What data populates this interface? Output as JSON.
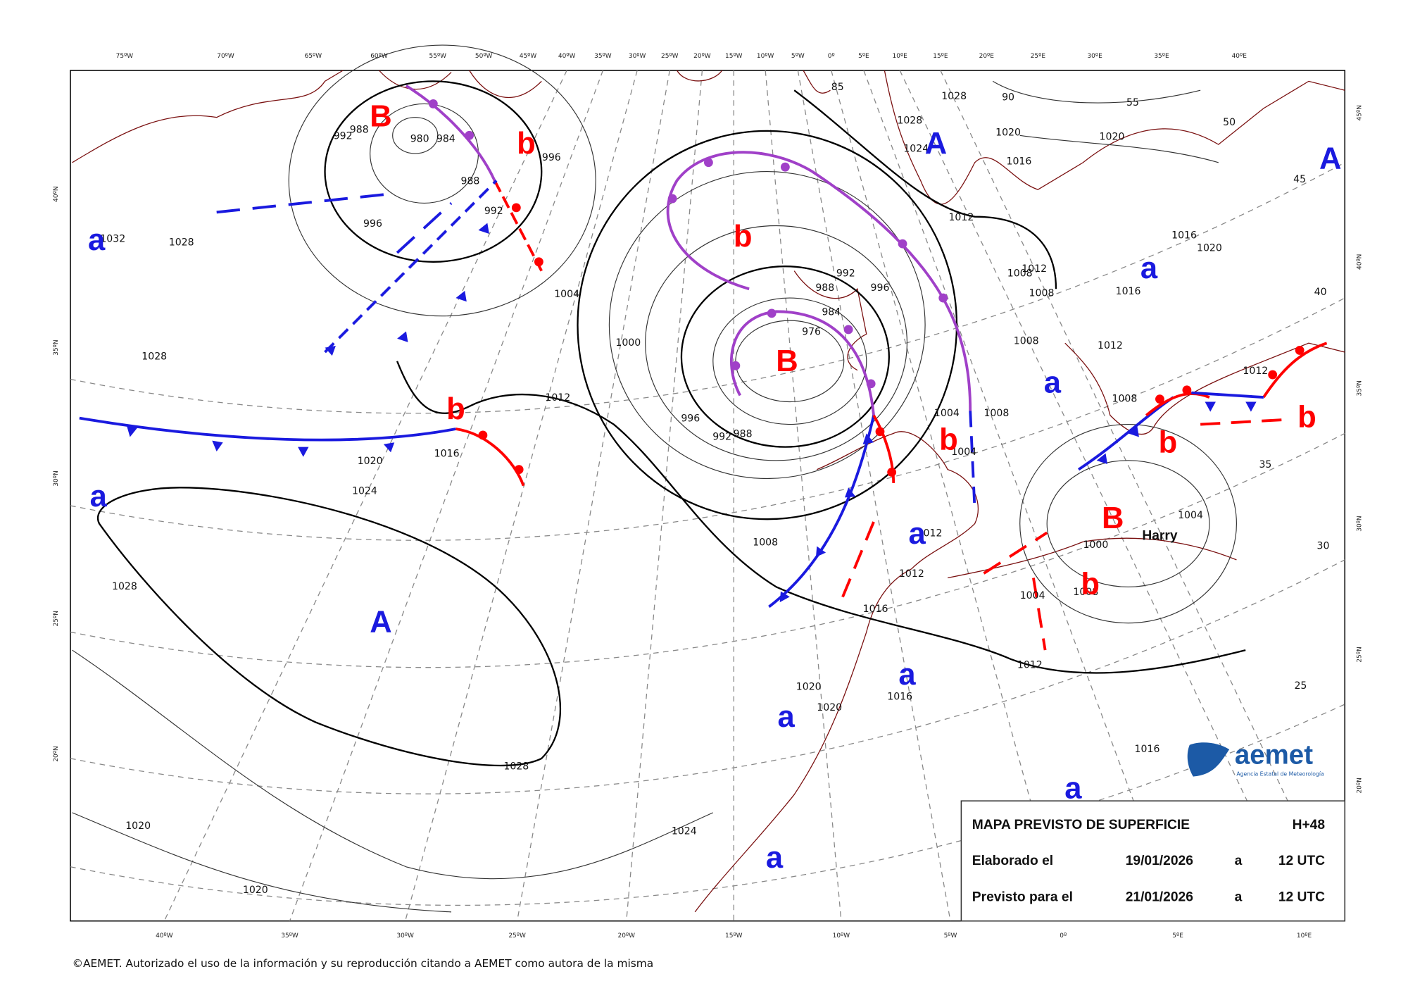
{
  "map": {
    "top_axis": [
      "75ºW",
      "70ºW",
      "65ºW",
      "60ºW",
      "55ºW",
      "50ºW",
      "45ºW",
      "40ºW",
      "35ºW",
      "30ºW",
      "25ºW",
      "20ºW",
      "15ºW",
      "10ºW",
      "5ºW",
      "0º",
      "5ºE",
      "10ºE",
      "15ºE",
      "20ºE",
      "25ºE",
      "30ºE",
      "35ºE",
      "40ºE"
    ],
    "bottom_axis": [
      "40ºW",
      "35ºW",
      "30ºW",
      "25ºW",
      "20ºW",
      "15ºW",
      "10ºW",
      "5ºW",
      "0º",
      "5ºE",
      "10ºE"
    ],
    "left_axis": [
      "40ºN",
      "35ºN",
      "30ºN",
      "25ºN",
      "20ºN"
    ],
    "right_axis": [
      "45ºN",
      "40ºN",
      "35ºN",
      "30ºN",
      "25ºN",
      "20ºN"
    ],
    "isobar_labels": [
      "980",
      "984",
      "988",
      "992",
      "996",
      "988",
      "992",
      "996",
      "1032",
      "1028",
      "1028",
      "1004",
      "1000",
      "1012",
      "1016",
      "1020",
      "1024",
      "1028",
      "1028",
      "1020",
      "1020",
      "1024",
      "996",
      "992",
      "988",
      "1008",
      "976",
      "988",
      "992",
      "996",
      "984",
      "1004",
      "1004",
      "1008",
      "1012",
      "1012",
      "1016",
      "1020",
      "1020",
      "1016",
      "1012",
      "1004",
      "1000",
      "1004",
      "1008",
      "1028",
      "1028",
      "1020",
      "1016",
      "1020",
      "1012",
      "1012",
      "1008",
      "1008",
      "1008",
      "1012",
      "1008",
      "1012",
      "1016",
      "1020",
      "1016",
      "1016",
      "85",
      "90",
      "55",
      "50",
      "45",
      "40",
      "35",
      "30",
      "25",
      "1024"
    ],
    "pressure_centers": [
      "B",
      "b",
      "A",
      "A",
      "a",
      "b",
      "a",
      "B",
      "a",
      "b",
      "b",
      "b",
      "b",
      "a",
      "a",
      "B",
      "b",
      "A",
      "a",
      "a",
      "a",
      "a"
    ],
    "storm_name": "Harry",
    "info": {
      "title": "MAPA PREVISTO DE SUPERFICIE",
      "range": "H+48",
      "issued_label": "Elaborado el",
      "issued_date": "19/01/2026",
      "issued_sep": "a",
      "issued_time": "12 UTC",
      "valid_label": "Previsto para el",
      "valid_date": "21/01/2026",
      "valid_sep": "a",
      "valid_time": "12 UTC"
    },
    "logo": {
      "name": "aemet",
      "subtitle": "Agencia Estatal de Meteorología"
    },
    "copyright": "©AEMET. Autorizado el uso de la información y su reproducción citando a AEMET como autora de la misma"
  }
}
